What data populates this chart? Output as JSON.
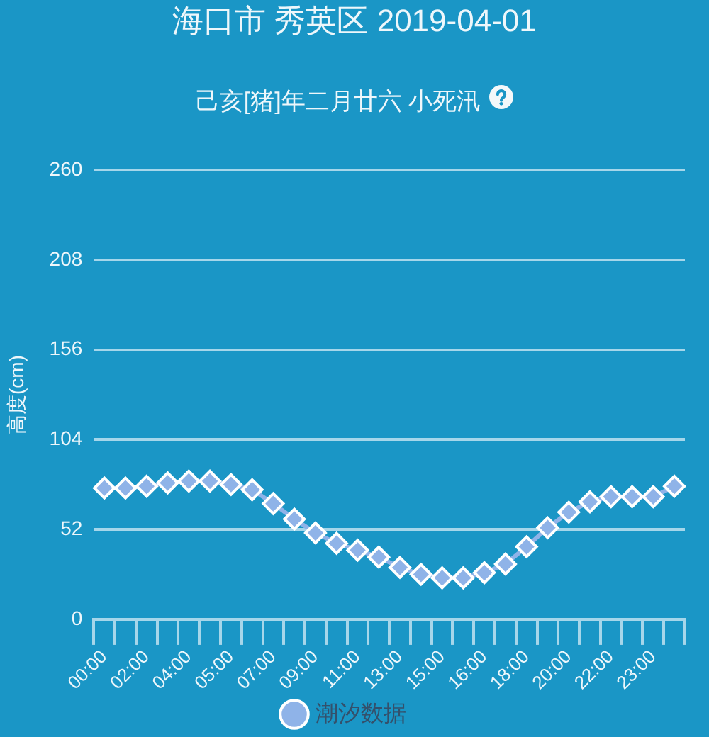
{
  "chart_data": {
    "type": "line",
    "title": "海口市 秀英区 2019-04-01",
    "subtitle": "己亥[猪]年二月廿六 小死汛",
    "ylabel": "高度(cm)",
    "categories": [
      "00:00",
      null,
      "02:00",
      null,
      "04:00",
      null,
      "05:00",
      null,
      "07:00",
      null,
      "09:00",
      null,
      "11:00",
      null,
      "13:00",
      null,
      "15:00",
      null,
      "16:00",
      null,
      "18:00",
      null,
      "20:00",
      null,
      "22:00",
      null,
      "23:00",
      null
    ],
    "series": [
      {
        "name": "潮汐数据",
        "color": "#8fb3e8",
        "values": [
          76,
          76,
          77,
          79,
          80,
          80,
          78,
          75,
          67,
          58,
          50,
          44,
          40,
          36,
          30,
          26,
          24,
          24,
          27,
          32,
          42,
          53,
          62,
          68,
          71,
          71,
          71,
          77
        ]
      }
    ],
    "ylim": [
      0,
      260
    ],
    "yticks": [
      0,
      52,
      104,
      156,
      208,
      260
    ],
    "grid": "y",
    "legend": "bottom",
    "marker": "diamond"
  }
}
